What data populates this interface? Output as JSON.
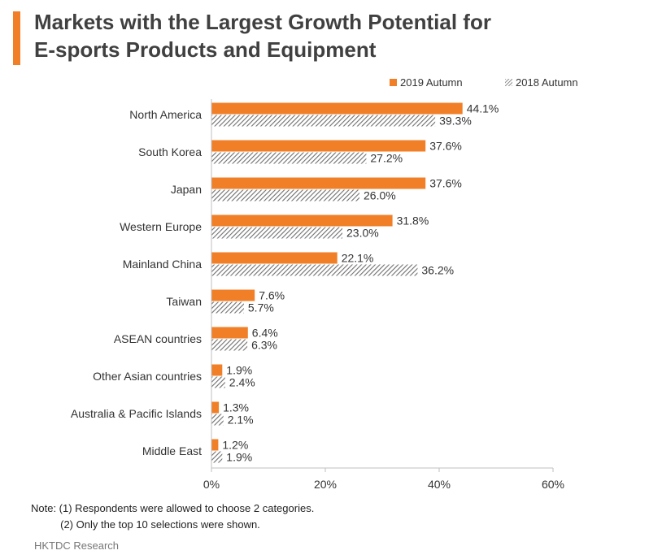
{
  "title": {
    "line1": "Markets with the Largest Growth Potential for",
    "line2": "E-sports Products and Equipment"
  },
  "colors": {
    "accent": "#f07f27",
    "series_2019": "#f07f27",
    "series_2018_hatch": "#6e6e6e",
    "text": "#333333"
  },
  "chart_data": {
    "type": "bar",
    "orientation": "horizontal",
    "categories": [
      "North America",
      "South Korea",
      "Japan",
      "Western Europe",
      "Mainland China",
      "Taiwan",
      "ASEAN countries",
      "Other Asian countries",
      "Australia & Pacific Islands",
      "Middle East"
    ],
    "series": [
      {
        "name": "2019 Autumn",
        "values": [
          44.1,
          37.6,
          37.6,
          31.8,
          22.1,
          7.6,
          6.4,
          1.9,
          1.3,
          1.2
        ],
        "labels": [
          "44.1%",
          "37.6%",
          "37.6%",
          "31.8%",
          "22.1%",
          "7.6%",
          "6.4%",
          "1.9%",
          "1.3%",
          "1.2%"
        ],
        "style": "solid"
      },
      {
        "name": "2018 Autumn",
        "values": [
          39.3,
          27.2,
          26.0,
          23.0,
          36.2,
          5.7,
          6.3,
          2.4,
          2.1,
          1.9
        ],
        "labels": [
          "39.3%",
          "27.2%",
          "26.0%",
          "23.0%",
          "36.2%",
          "5.7%",
          "6.3%",
          "2.4%",
          "2.1%",
          "1.9%"
        ],
        "style": "hatched"
      }
    ],
    "xlim": [
      0,
      60
    ],
    "xticks": [
      "0%",
      "20%",
      "40%",
      "60%"
    ],
    "xtick_values": [
      0,
      20,
      40,
      60
    ],
    "grid": false,
    "legend_position": "top-right"
  },
  "note": {
    "line1": "Note: (1) Respondents were allowed to choose 2 categories.",
    "line2": "          (2) Only the top 10 selections were shown."
  },
  "source": "HKTDC Research"
}
